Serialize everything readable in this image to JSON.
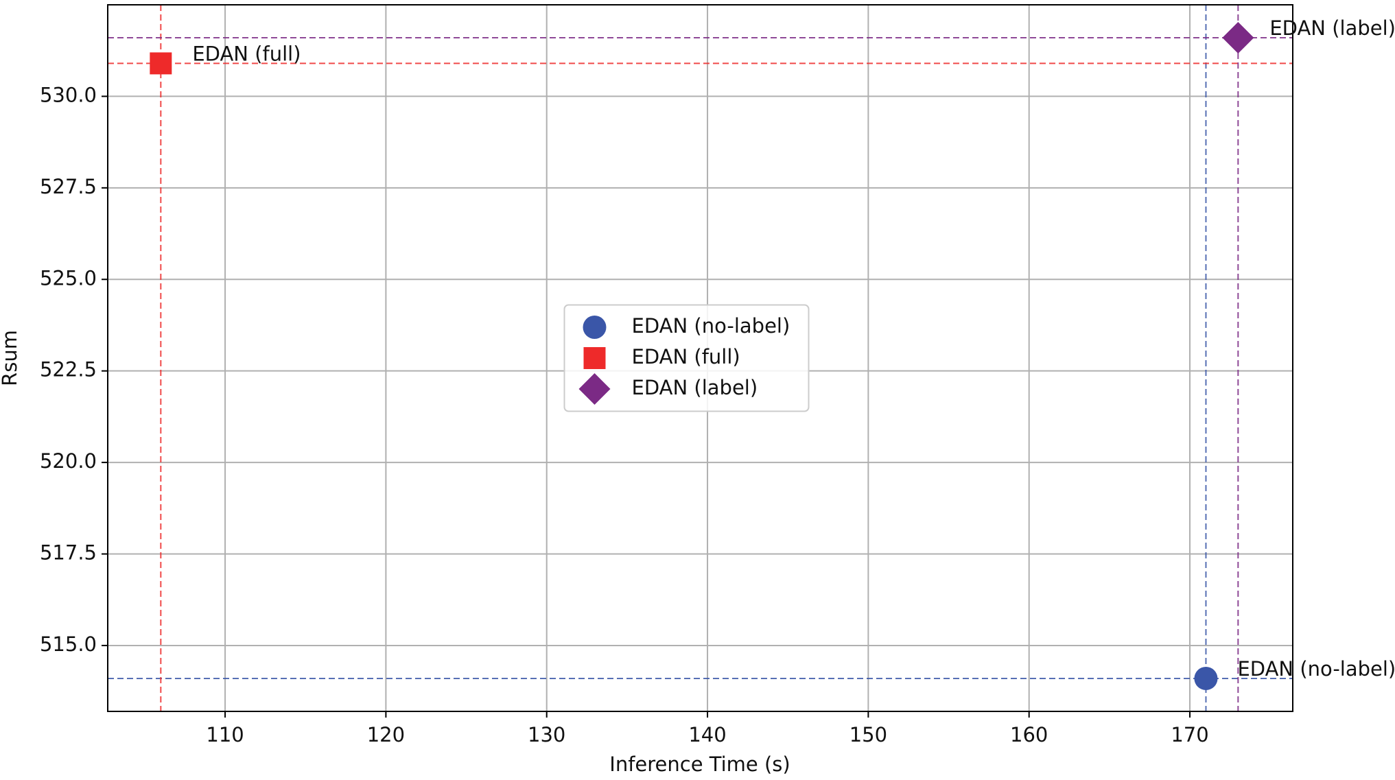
{
  "chart_data": {
    "type": "scatter",
    "xlabel": "Inference Time (s)",
    "ylabel": "Rsum",
    "xlim": [
      102.7,
      176.4
    ],
    "ylim": [
      513.2,
      532.5
    ],
    "xticks": [
      110,
      120,
      130,
      140,
      150,
      160,
      170
    ],
    "yticks": [
      {
        "value": 515,
        "label": "515.0"
      },
      517.5,
      {
        "value": 520,
        "label": "520.0"
      },
      522.5,
      {
        "value": 525,
        "label": "525.0"
      },
      527.5,
      {
        "value": 530,
        "label": "530.0"
      }
    ],
    "grid": true,
    "legend": "center",
    "series": [
      {
        "name": "EDAN (no-label)",
        "color": "#3a56a8",
        "marker": "circle",
        "x": [
          171.0
        ],
        "values": [
          514.1
        ]
      },
      {
        "name": "EDAN (full)",
        "color": "#ee2a2a",
        "marker": "square",
        "x": [
          106.0
        ],
        "values": [
          530.9
        ]
      },
      {
        "name": "EDAN (label)",
        "color": "#7b2a85",
        "marker": "diamond",
        "x": [
          173.0
        ],
        "values": [
          531.6
        ]
      }
    ]
  }
}
